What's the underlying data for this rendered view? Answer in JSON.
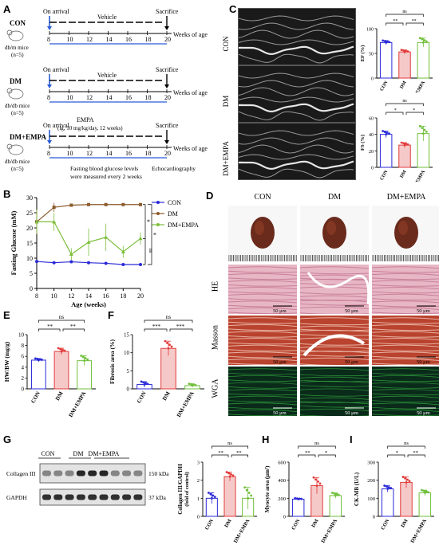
{
  "panelA": {
    "letter": "A",
    "rows": [
      {
        "group": "CON",
        "mouse": "db/m mice",
        "n": "(n=5)",
        "arrival": "On arrival",
        "treatment": "Vehicle",
        "sacrifice": "Sacrifice"
      },
      {
        "group": "DM",
        "mouse": "db/db mice",
        "n": "(n=5)",
        "arrival": "On arrival",
        "treatment": "Vehicle",
        "sacrifice": "Sacrifice"
      },
      {
        "group": "DM+EMPA",
        "mouse": "db/db mice",
        "n": "(n=5)",
        "arrival": "On arrival",
        "treatment": "EMPA",
        "treatment2": "(ig, 10 mg/kg/day, 12 weeks)",
        "sacrifice": "Sacrifice"
      }
    ],
    "weeks": [
      "8",
      "10",
      "12",
      "14",
      "16",
      "18",
      "20"
    ],
    "weeks_label": "Weeks of age",
    "note1": "Fasting blood glucose levels",
    "note2": "were measured every 2 weeks",
    "echo_label": "Echocardiography"
  },
  "panelB": {
    "letter": "B",
    "chart_data": {
      "type": "line",
      "xlabel": "Age (weeks)",
      "ylabel": "Fasting Glucose (mM)",
      "x": [
        8,
        10,
        12,
        14,
        16,
        18,
        20
      ],
      "xlim": [
        8,
        20
      ],
      "ylim": [
        0,
        30
      ],
      "yticks": [
        0,
        5,
        10,
        15,
        20,
        25,
        30
      ],
      "series": [
        {
          "name": "CON",
          "color": "#2a2ad8",
          "values": [
            8.9,
            8.5,
            8.8,
            8.5,
            8.3,
            7.9,
            7.9
          ],
          "err": [
            0.3,
            0.4,
            0.4,
            0.3,
            0.4,
            0.4,
            0.3
          ]
        },
        {
          "name": "DM",
          "color": "#8b5a2b",
          "values": [
            22.0,
            26.8,
            27.5,
            27.7,
            27.7,
            27.7,
            27.7
          ],
          "err": [
            4.0,
            1.5,
            0.3,
            0.3,
            0.3,
            0.3,
            0.3
          ]
        },
        {
          "name": "DM+EMPA",
          "color": "#7cbf3a",
          "values": [
            22.0,
            22.0,
            11.3,
            15.3,
            16.9,
            12.1,
            16.5
          ],
          "err": [
            4.0,
            3.0,
            2.0,
            4.5,
            4.5,
            2.0,
            2.0
          ]
        }
      ],
      "annotations": [
        "*",
        "*",
        "ns"
      ],
      "legend": "top-right"
    }
  },
  "panelC": {
    "letter": "C",
    "rows": [
      "CON",
      "DM",
      "DM+EMPA"
    ],
    "charts": [
      {
        "type": "bar",
        "ylabel": "EF (%)",
        "ylim": [
          0,
          100
        ],
        "yticks": [
          0,
          50,
          100
        ],
        "categories": [
          "CON",
          "DM",
          "DM+EMPA"
        ],
        "values": [
          72,
          53,
          72
        ],
        "err": [
          4,
          4,
          9
        ],
        "sig": [
          "ns",
          "**",
          "**"
        ]
      },
      {
        "type": "bar",
        "ylabel": "FS (%)",
        "ylim": [
          0,
          60
        ],
        "yticks": [
          0,
          20,
          40,
          60
        ],
        "categories": [
          "CON",
          "DM",
          "DM+EMPA"
        ],
        "values": [
          40,
          27,
          41
        ],
        "err": [
          4,
          3,
          9
        ],
        "sig": [
          "ns",
          "*",
          "*"
        ]
      }
    ]
  },
  "panelD": {
    "letter": "D",
    "columns": [
      "CON",
      "DM",
      "DM+EMPA"
    ],
    "row_labels": [
      "HE",
      "Masson",
      "WGA"
    ],
    "scale": "50 μm"
  },
  "panelE": {
    "letter": "E",
    "chart_data": {
      "type": "bar",
      "ylabel": "HW/BW (mg/g)",
      "ylim": [
        0,
        10
      ],
      "yticks": [
        0,
        2,
        4,
        6,
        8,
        10
      ],
      "categories": [
        "CON",
        "DM",
        "DM+EMPA"
      ],
      "values": [
        5.3,
        6.9,
        5.2
      ],
      "err": [
        0.3,
        0.6,
        0.9
      ],
      "sig": [
        "ns",
        "**",
        "**"
      ]
    }
  },
  "panelF": {
    "letter": "F",
    "chart_data": {
      "type": "bar",
      "ylabel": "Fibrosis area (%)",
      "ylim": [
        0,
        15
      ],
      "yticks": [
        0,
        5,
        10,
        15
      ],
      "categories": [
        "CON",
        "DM",
        "DM+EMPA"
      ],
      "values": [
        1.2,
        11.2,
        0.9
      ],
      "err": [
        0.8,
        2.0,
        0.5
      ],
      "sig": [
        "ns",
        "***",
        "***"
      ]
    }
  },
  "panelG": {
    "letter": "G",
    "blot_groups": [
      "CON",
      "DM",
      "DM+EMPA"
    ],
    "proteins": [
      {
        "name": "Collagen III",
        "size": "150 kDa"
      },
      {
        "name": "GAPDH",
        "size": "37 kDa"
      }
    ],
    "chart_data": {
      "type": "bar",
      "ylabel": "Collagen III/GAPDH",
      "ylabel2": "(fold of control)",
      "ylim": [
        0,
        3
      ],
      "yticks": [
        0,
        1,
        2,
        3
      ],
      "categories": [
        "CON",
        "DM",
        "DM+EMPA"
      ],
      "values": [
        1.0,
        2.2,
        1.0
      ],
      "err": [
        0.3,
        0.25,
        0.6
      ],
      "sig": [
        "ns",
        "**",
        "**"
      ]
    }
  },
  "panelH": {
    "letter": "H",
    "chart_data": {
      "type": "bar",
      "ylabel": "Myocyte area (μm²)",
      "ylim": [
        0,
        600
      ],
      "yticks": [
        0,
        200,
        400,
        600
      ],
      "categories": [
        "CON",
        "DM",
        "DM+EMPA"
      ],
      "values": [
        190,
        340,
        230
      ],
      "err": [
        10,
        90,
        30
      ],
      "sig": [
        "ns",
        "**",
        "*"
      ]
    }
  },
  "panelI": {
    "letter": "I",
    "chart_data": {
      "type": "bar",
      "ylabel": "CK-MB (U/L)",
      "ylim": [
        0,
        300
      ],
      "yticks": [
        0,
        100,
        200,
        300
      ],
      "categories": [
        "CON",
        "DM",
        "DM+EMPA"
      ],
      "values": [
        152,
        188,
        130
      ],
      "err": [
        18,
        30,
        15
      ],
      "sig": [
        "ns",
        "*",
        "**"
      ]
    }
  },
  "colors": {
    "con": "#2a2ad8",
    "dm": "#e23b3b",
    "empa": "#6fbf3a",
    "dm_line": "#8b5a2b"
  }
}
